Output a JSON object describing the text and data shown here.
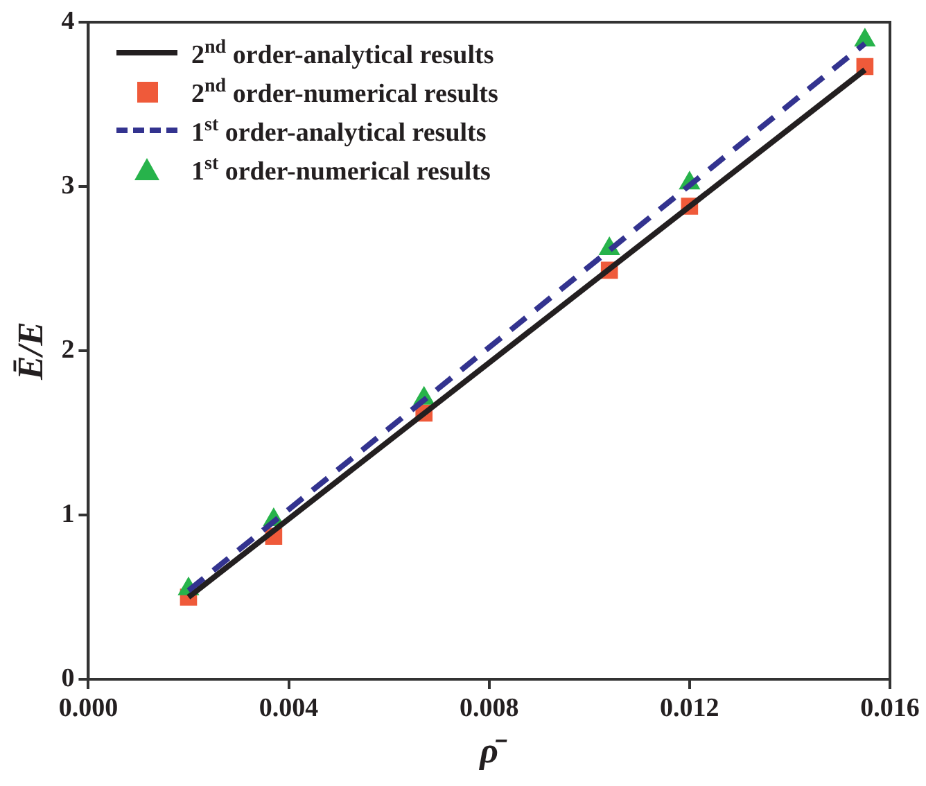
{
  "chart_data": {
    "type": "line",
    "xlabel": "ρ̄",
    "ylabel": "Ē/E",
    "xlim": [
      0,
      0.016
    ],
    "xticks": [
      {
        "value": 0,
        "label": "0.000"
      },
      {
        "value": 0.004,
        "label": "0.004"
      },
      {
        "value": 0.008,
        "label": "0.008"
      },
      {
        "value": 0.012,
        "label": "0.012"
      },
      {
        "value": 0.016,
        "label": "0.016"
      }
    ],
    "ylim": [
      0,
      4
    ],
    "yticks": [
      0,
      1,
      2,
      3,
      4
    ],
    "grid": false,
    "legend": "top left",
    "series": [
      {
        "name": "2$^{nd}$ order-analytical results",
        "type": "line",
        "color": "#231f20",
        "marker": "none",
        "line_style": "solid",
        "x": [
          0.002,
          0.0155
        ],
        "values": [
          0.5,
          3.71
        ]
      },
      {
        "name": "2$^{nd}$ order-numerical results",
        "type": "scatter",
        "color": "#ef5a3a",
        "marker": "square",
        "x": [
          0.002,
          0.0037,
          0.0067,
          0.0104,
          0.012,
          0.0155
        ],
        "values": [
          0.5,
          0.87,
          1.62,
          2.49,
          2.88,
          3.73
        ]
      },
      {
        "name": "1$^{st}$ order-analytical results",
        "type": "line",
        "color": "#33338f",
        "marker": "none",
        "line_style": "dashed",
        "x": [
          0.002,
          0.0155
        ],
        "values": [
          0.54,
          3.87
        ]
      },
      {
        "name": "1$^{st}$ order-numerical results",
        "type": "scatter",
        "color": "#27b34b",
        "marker": "triangle",
        "x": [
          0.002,
          0.0037,
          0.0067,
          0.0104,
          0.012,
          0.0155
        ],
        "values": [
          0.55,
          0.97,
          1.71,
          2.62,
          3.02,
          3.89
        ]
      }
    ]
  }
}
